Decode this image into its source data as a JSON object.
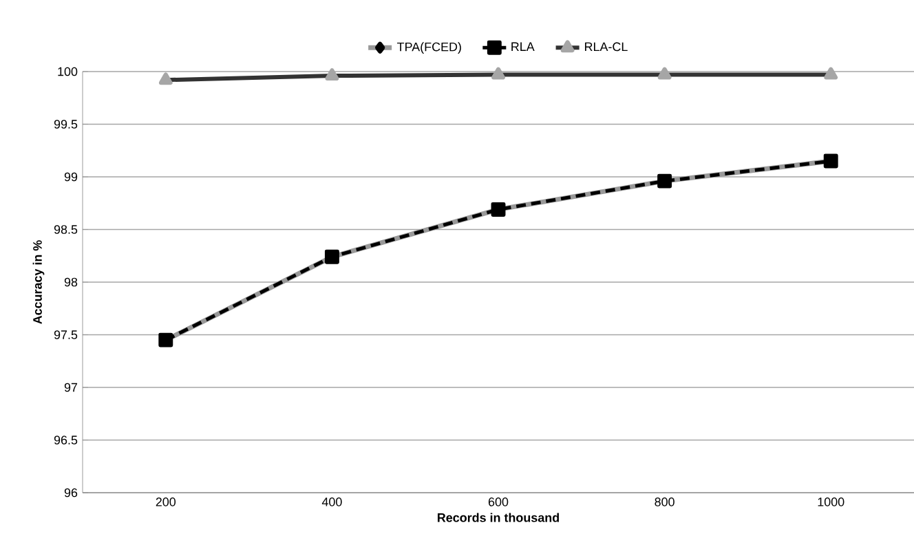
{
  "chart_data": {
    "type": "line",
    "xlabel": "Records in thousand",
    "ylabel": "Accuracy in %",
    "categories": [
      "200",
      "400",
      "600",
      "800",
      "1000"
    ],
    "ylim": [
      96,
      100
    ],
    "yticks": [
      96,
      96.5,
      97,
      97.5,
      98,
      98.5,
      99,
      99.5,
      100
    ],
    "grid": "y",
    "legend": "top",
    "series": [
      {
        "name": "TPA(FCED)",
        "color": "#999999",
        "marker": "diamond",
        "line_style": "solid",
        "values": [
          97.45,
          98.24,
          98.69,
          98.96,
          99.15
        ]
      },
      {
        "name": "RLA",
        "color": "#000000",
        "marker": "square",
        "line_style": "dashed",
        "values": [
          97.45,
          98.24,
          98.69,
          98.96,
          99.15
        ]
      },
      {
        "name": "RLA-CL",
        "color": "#333333",
        "marker": "triangle",
        "line_style": "solid",
        "values": [
          99.92,
          99.96,
          99.97,
          99.97,
          99.97
        ]
      }
    ]
  }
}
